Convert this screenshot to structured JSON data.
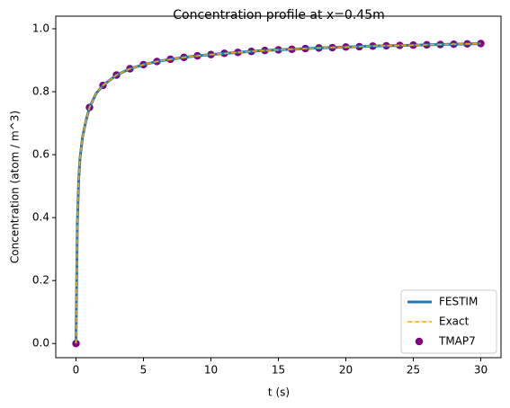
{
  "chart_data": {
    "type": "line",
    "title": "Concentration profile at x=0.45m",
    "x_label": "t (s)",
    "y_label": "Concentration (atom / m^3)",
    "xlim": [
      -1.5,
      31.5
    ],
    "ylim": [
      -0.045,
      1.04
    ],
    "xticks": [
      0,
      5,
      10,
      15,
      20,
      25,
      30
    ],
    "yticks": [
      {
        "value": 0,
        "label": "0.0"
      },
      {
        "value": 0.2,
        "label": "0.2"
      },
      {
        "value": 0.4,
        "label": "0.4"
      },
      {
        "value": 0.6,
        "label": "0.6"
      },
      {
        "value": 0.8,
        "label": "0.8"
      },
      {
        "value": 1,
        "label": "1.0"
      }
    ],
    "legend": "lower right",
    "series": [
      {
        "name": "FESTIM",
        "color": "#1f77b4",
        "style": "solid",
        "x": [
          0,
          0.05,
          0.1,
          0.2,
          0.3,
          0.5,
          0.75,
          1,
          1.5,
          2,
          3,
          4,
          5,
          6,
          7,
          8,
          9,
          10,
          12,
          14,
          16,
          18,
          20,
          22,
          24,
          26,
          28,
          30
        ],
        "values": [
          0,
          0.2,
          0.38,
          0.52,
          0.59,
          0.66,
          0.71,
          0.75,
          0.795,
          0.82,
          0.853,
          0.873,
          0.886,
          0.896,
          0.903,
          0.909,
          0.914,
          0.918,
          0.925,
          0.931,
          0.935,
          0.939,
          0.942,
          0.945,
          0.947,
          0.949,
          0.951,
          0.953
        ]
      },
      {
        "name": "Exact",
        "color": "#ffa500",
        "style": "dashed",
        "x": [
          0,
          0.05,
          0.1,
          0.2,
          0.3,
          0.5,
          0.75,
          1,
          1.5,
          2,
          3,
          4,
          5,
          6,
          7,
          8,
          9,
          10,
          12,
          14,
          16,
          18,
          20,
          22,
          24,
          26,
          28,
          30
        ],
        "values": [
          0,
          0.2,
          0.38,
          0.52,
          0.59,
          0.66,
          0.71,
          0.75,
          0.795,
          0.82,
          0.853,
          0.873,
          0.886,
          0.896,
          0.903,
          0.909,
          0.914,
          0.918,
          0.925,
          0.931,
          0.935,
          0.939,
          0.942,
          0.945,
          0.947,
          0.949,
          0.951,
          0.953
        ]
      },
      {
        "name": "TMAP7",
        "color": "#800080",
        "style": "scatter",
        "x": [
          0,
          1,
          2,
          3,
          4,
          5,
          6,
          7,
          8,
          9,
          10,
          11,
          12,
          13,
          14,
          15,
          16,
          17,
          18,
          19,
          20,
          21,
          22,
          23,
          24,
          25,
          26,
          27,
          28,
          29,
          30
        ],
        "values": [
          0,
          0.75,
          0.82,
          0.853,
          0.873,
          0.886,
          0.896,
          0.903,
          0.909,
          0.914,
          0.918,
          0.922,
          0.925,
          0.928,
          0.931,
          0.933,
          0.935,
          0.937,
          0.939,
          0.94,
          0.942,
          0.943,
          0.945,
          0.946,
          0.947,
          0.948,
          0.949,
          0.95,
          0.951,
          0.952,
          0.953
        ]
      }
    ]
  }
}
